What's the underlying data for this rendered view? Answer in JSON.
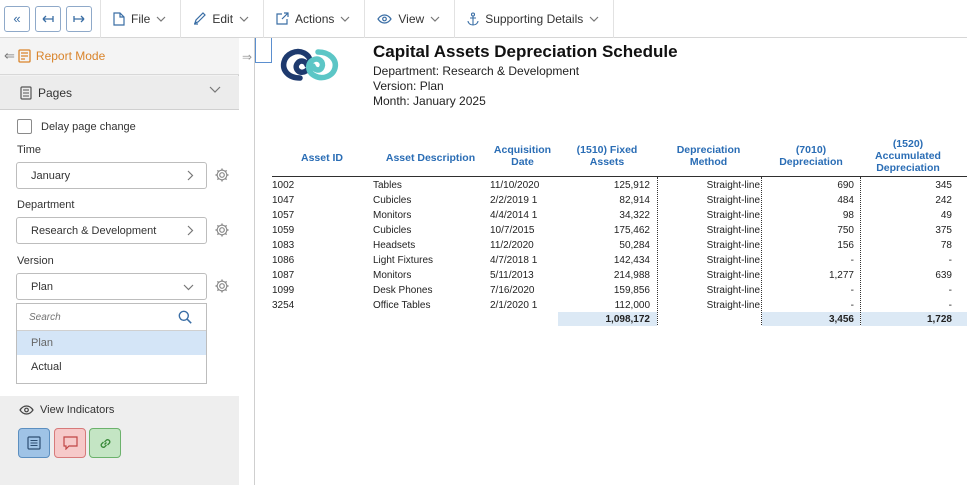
{
  "toolbar": {
    "file_label": "File",
    "edit_label": "Edit",
    "actions_label": "Actions",
    "view_label": "View",
    "supporting_label": "Supporting Details"
  },
  "sidebar": {
    "report_mode_label": "Report Mode",
    "pages_label": "Pages",
    "delay_label": "Delay page change",
    "time_label": "Time",
    "time_value": "January",
    "department_label": "Department",
    "department_value": "Research & Development",
    "version_label": "Version",
    "version_value": "Plan",
    "search_placeholder": "Search",
    "version_options": [
      "Plan",
      "Actual"
    ],
    "view_indicators_label": "View Indicators"
  },
  "report": {
    "title": "Capital Assets Depreciation Schedule",
    "department_line": "Department: Research & Development",
    "version_line": "Version: Plan",
    "month_line": "Month: January 2025",
    "columns": {
      "asset_id": "Asset ID",
      "desc": "Asset Description",
      "acq_1": "Acquisition",
      "acq_2": "Date",
      "fixed_1": "(1510) Fixed",
      "fixed_2": "Assets",
      "method_1": "Depreciation",
      "method_2": "Method",
      "dep_1": "(7010)",
      "dep_2": "Depreciation",
      "accum_1": "(1520)",
      "accum_2": "Accumulated",
      "accum_3": "Depreciation"
    },
    "rows": [
      {
        "id": "1002",
        "desc": "Tables",
        "date": "11/10/2020",
        "fixed": "125,912",
        "method": "Straight-line",
        "dep": "690",
        "accum": "345"
      },
      {
        "id": "1047",
        "desc": "Cubicles",
        "date": "2/2/2019 1",
        "fixed": "82,914",
        "method": "Straight-line",
        "dep": "484",
        "accum": "242"
      },
      {
        "id": "1057",
        "desc": "Monitors",
        "date": "4/4/2014 1",
        "fixed": "34,322",
        "method": "Straight-line",
        "dep": "98",
        "accum": "49"
      },
      {
        "id": "1059",
        "desc": "Cubicles",
        "date": "10/7/2015",
        "fixed": "175,462",
        "method": "Straight-line",
        "dep": "750",
        "accum": "375"
      },
      {
        "id": "1083",
        "desc": "Headsets",
        "date": "11/2/2020",
        "fixed": "50,284",
        "method": "Straight-line",
        "dep": "156",
        "accum": "78"
      },
      {
        "id": "1086",
        "desc": "Light Fixtures",
        "date": "4/7/2018 1",
        "fixed": "142,434",
        "method": "Straight-line",
        "dep": "-",
        "accum": "-"
      },
      {
        "id": "1087",
        "desc": "Monitors",
        "date": "5/11/2013",
        "fixed": "214,988",
        "method": "Straight-line",
        "dep": "1,277",
        "accum": "639"
      },
      {
        "id": "1099",
        "desc": "Desk Phones",
        "date": "7/16/2020",
        "fixed": "159,856",
        "method": "Straight-line",
        "dep": "-",
        "accum": "-"
      },
      {
        "id": "3254",
        "desc": "Office Tables",
        "date": "2/1/2020 1",
        "fixed": "112,000",
        "method": "Straight-line",
        "dep": "-",
        "accum": "-"
      }
    ],
    "totals": {
      "fixed": "1,098,172",
      "dep": "3,456",
      "accum": "1,728"
    }
  },
  "colors": {
    "accent": "#2a6db5",
    "report_mode": "#d9842b",
    "total_bg": "#dce9f5"
  }
}
